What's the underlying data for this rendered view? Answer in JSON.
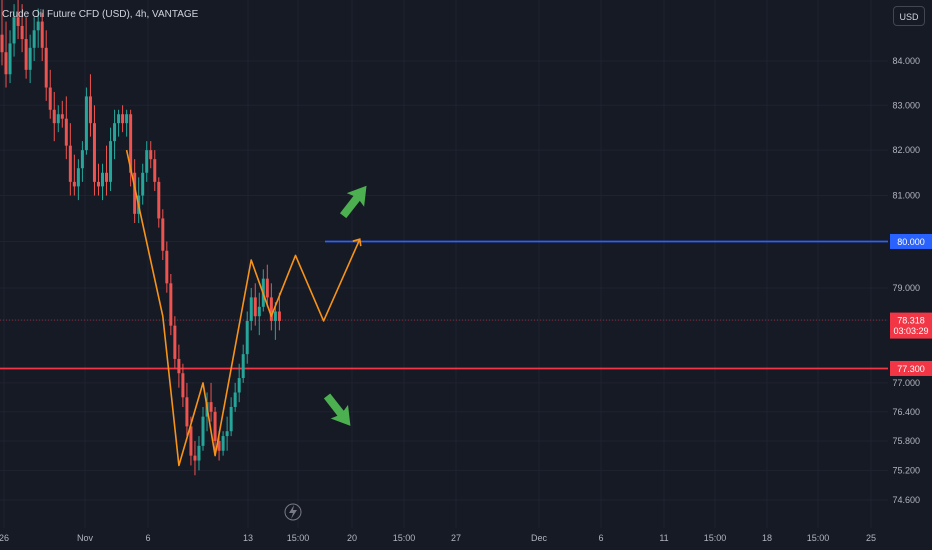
{
  "legend": {
    "symbol": "Crude Oil Future CFD (USD), 4h, VANTAGE"
  },
  "price_axis": {
    "currency": "USD"
  },
  "replay_icon": "lightning-icon",
  "colors": {
    "background": "#161a25",
    "up_candle": "#26a69a",
    "down_candle": "#ef5350",
    "resistance_line": "#2962ff",
    "support_line": "#f23645",
    "pattern": "#f7931a",
    "arrow": "#4caf50"
  },
  "chart_data": {
    "type": "candlestick",
    "y_ticks": [
      "84.000",
      "83.000",
      "82.000",
      "81.000",
      "80.000",
      "79.000",
      "78.318",
      "77.300",
      "77.000",
      "76.400",
      "75.800",
      "75.200",
      "74.600"
    ],
    "x_ticks": [
      "26",
      "Nov",
      "6",
      "13",
      "15:00",
      "20",
      "15:00",
      "27",
      "Dec",
      "6",
      "11",
      "15:00",
      "18",
      "15:00",
      "25"
    ],
    "ylim": [
      74.3,
      85.3
    ],
    "scale": "log",
    "price_tags": [
      {
        "price": "80.000",
        "color": "#2962ff"
      },
      {
        "price": "78.318",
        "countdown": "03:03:29",
        "color": "#f23645"
      },
      {
        "price": "77.300",
        "color": "#f23645"
      }
    ],
    "horizontal_lines": [
      {
        "price": 80.0,
        "color": "#2962ff"
      },
      {
        "price": 77.3,
        "color": "#f23645"
      }
    ],
    "current_price": 78.318,
    "candles": [
      {
        "o": 84.6,
        "h": 85.4,
        "l": 83.9,
        "c": 84.2
      },
      {
        "o": 84.2,
        "h": 84.9,
        "l": 83.4,
        "c": 83.7
      },
      {
        "o": 83.7,
        "h": 84.7,
        "l": 83.5,
        "c": 84.4
      },
      {
        "o": 84.4,
        "h": 85.3,
        "l": 84.1,
        "c": 85.0
      },
      {
        "o": 85.0,
        "h": 85.4,
        "l": 84.5,
        "c": 84.8
      },
      {
        "o": 84.8,
        "h": 85.3,
        "l": 84.2,
        "c": 84.5
      },
      {
        "o": 84.5,
        "h": 85.0,
        "l": 83.6,
        "c": 83.8
      },
      {
        "o": 83.8,
        "h": 84.6,
        "l": 83.5,
        "c": 84.3
      },
      {
        "o": 84.3,
        "h": 85.0,
        "l": 84.0,
        "c": 84.7
      },
      {
        "o": 84.7,
        "h": 85.2,
        "l": 84.3,
        "c": 84.9
      },
      {
        "o": 84.9,
        "h": 85.1,
        "l": 84.0,
        "c": 84.3
      },
      {
        "o": 84.3,
        "h": 84.7,
        "l": 83.1,
        "c": 83.4
      },
      {
        "o": 83.4,
        "h": 83.8,
        "l": 82.7,
        "c": 82.9
      },
      {
        "o": 82.9,
        "h": 83.3,
        "l": 82.2,
        "c": 82.6
      },
      {
        "o": 82.6,
        "h": 83.0,
        "l": 82.4,
        "c": 82.8
      },
      {
        "o": 82.8,
        "h": 83.1,
        "l": 82.5,
        "c": 82.7
      },
      {
        "o": 82.7,
        "h": 83.2,
        "l": 81.8,
        "c": 82.1
      },
      {
        "o": 82.1,
        "h": 82.6,
        "l": 81.0,
        "c": 81.3
      },
      {
        "o": 81.3,
        "h": 81.9,
        "l": 81.0,
        "c": 81.2
      },
      {
        "o": 81.2,
        "h": 81.8,
        "l": 80.9,
        "c": 81.6
      },
      {
        "o": 81.6,
        "h": 82.2,
        "l": 81.3,
        "c": 82.0
      },
      {
        "o": 82.0,
        "h": 83.4,
        "l": 81.9,
        "c": 83.2
      },
      {
        "o": 83.2,
        "h": 83.7,
        "l": 82.3,
        "c": 82.6
      },
      {
        "o": 82.6,
        "h": 83.0,
        "l": 81.0,
        "c": 81.3
      },
      {
        "o": 81.3,
        "h": 81.7,
        "l": 81.0,
        "c": 81.2
      },
      {
        "o": 81.2,
        "h": 81.7,
        "l": 80.9,
        "c": 81.5
      },
      {
        "o": 81.5,
        "h": 82.1,
        "l": 81.0,
        "c": 81.3
      },
      {
        "o": 81.3,
        "h": 82.5,
        "l": 81.1,
        "c": 82.2
      },
      {
        "o": 82.2,
        "h": 82.9,
        "l": 81.8,
        "c": 82.6
      },
      {
        "o": 82.6,
        "h": 82.9,
        "l": 82.3,
        "c": 82.8
      },
      {
        "o": 82.8,
        "h": 83.0,
        "l": 82.4,
        "c": 82.6
      },
      {
        "o": 82.6,
        "h": 82.9,
        "l": 82.3,
        "c": 82.8
      },
      {
        "o": 82.8,
        "h": 82.9,
        "l": 81.2,
        "c": 81.5
      },
      {
        "o": 81.5,
        "h": 81.8,
        "l": 80.4,
        "c": 80.6
      },
      {
        "o": 80.6,
        "h": 81.4,
        "l": 80.4,
        "c": 81.0
      },
      {
        "o": 81.0,
        "h": 81.7,
        "l": 80.8,
        "c": 81.5
      },
      {
        "o": 81.5,
        "h": 82.2,
        "l": 81.3,
        "c": 82.0
      },
      {
        "o": 82.0,
        "h": 82.2,
        "l": 81.6,
        "c": 81.8
      },
      {
        "o": 81.8,
        "h": 82.0,
        "l": 81.1,
        "c": 81.3
      },
      {
        "o": 81.3,
        "h": 81.4,
        "l": 80.3,
        "c": 80.5
      },
      {
        "o": 80.5,
        "h": 80.7,
        "l": 79.6,
        "c": 79.8
      },
      {
        "o": 79.8,
        "h": 80.0,
        "l": 78.9,
        "c": 79.1
      },
      {
        "o": 79.1,
        "h": 79.3,
        "l": 78.0,
        "c": 78.2
      },
      {
        "o": 78.2,
        "h": 78.4,
        "l": 77.3,
        "c": 77.5
      },
      {
        "o": 77.5,
        "h": 77.8,
        "l": 76.9,
        "c": 77.2
      },
      {
        "o": 77.2,
        "h": 77.4,
        "l": 76.5,
        "c": 76.7
      },
      {
        "o": 76.7,
        "h": 77.0,
        "l": 75.9,
        "c": 76.1
      },
      {
        "o": 76.1,
        "h": 76.3,
        "l": 75.3,
        "c": 75.5
      },
      {
        "o": 75.5,
        "h": 75.8,
        "l": 75.1,
        "c": 75.4
      },
      {
        "o": 75.4,
        "h": 75.9,
        "l": 75.2,
        "c": 75.7
      },
      {
        "o": 75.7,
        "h": 76.5,
        "l": 75.6,
        "c": 76.3
      },
      {
        "o": 76.3,
        "h": 76.8,
        "l": 76.0,
        "c": 76.6
      },
      {
        "o": 76.6,
        "h": 77.0,
        "l": 76.2,
        "c": 76.4
      },
      {
        "o": 76.4,
        "h": 76.5,
        "l": 75.6,
        "c": 75.8
      },
      {
        "o": 75.8,
        "h": 76.0,
        "l": 75.4,
        "c": 75.6
      },
      {
        "o": 75.6,
        "h": 76.0,
        "l": 75.5,
        "c": 75.9
      },
      {
        "o": 75.9,
        "h": 76.3,
        "l": 75.6,
        "c": 76.0
      },
      {
        "o": 76.0,
        "h": 76.7,
        "l": 75.9,
        "c": 76.5
      },
      {
        "o": 76.5,
        "h": 77.0,
        "l": 76.4,
        "c": 76.8
      },
      {
        "o": 76.8,
        "h": 77.4,
        "l": 76.6,
        "c": 77.1
      },
      {
        "o": 77.1,
        "h": 77.8,
        "l": 77.0,
        "c": 77.6
      },
      {
        "o": 77.6,
        "h": 78.5,
        "l": 77.4,
        "c": 78.3
      },
      {
        "o": 78.3,
        "h": 79.0,
        "l": 78.1,
        "c": 78.8
      },
      {
        "o": 78.8,
        "h": 79.1,
        "l": 78.2,
        "c": 78.4
      },
      {
        "o": 78.4,
        "h": 78.9,
        "l": 78.0,
        "c": 78.6
      },
      {
        "o": 78.6,
        "h": 79.4,
        "l": 78.5,
        "c": 79.2
      },
      {
        "o": 79.2,
        "h": 79.5,
        "l": 78.6,
        "c": 78.8
      },
      {
        "o": 78.8,
        "h": 79.1,
        "l": 78.1,
        "c": 78.3
      },
      {
        "o": 78.3,
        "h": 78.7,
        "l": 77.9,
        "c": 78.5
      },
      {
        "o": 78.5,
        "h": 78.9,
        "l": 78.1,
        "c": 78.3
      }
    ],
    "pattern_path": [
      [
        31,
        82.0
      ],
      [
        40,
        78.4
      ],
      [
        44,
        75.3
      ],
      [
        50,
        77.0
      ],
      [
        53,
        75.5
      ],
      [
        62,
        79.6
      ],
      [
        67,
        78.4
      ],
      [
        73,
        79.7
      ],
      [
        80,
        78.3
      ],
      [
        89,
        80.05
      ]
    ],
    "arrows": [
      {
        "direction": "up",
        "at": [
          87,
          80.8
        ]
      },
      {
        "direction": "down",
        "at": [
          83,
          76.5
        ]
      }
    ]
  }
}
